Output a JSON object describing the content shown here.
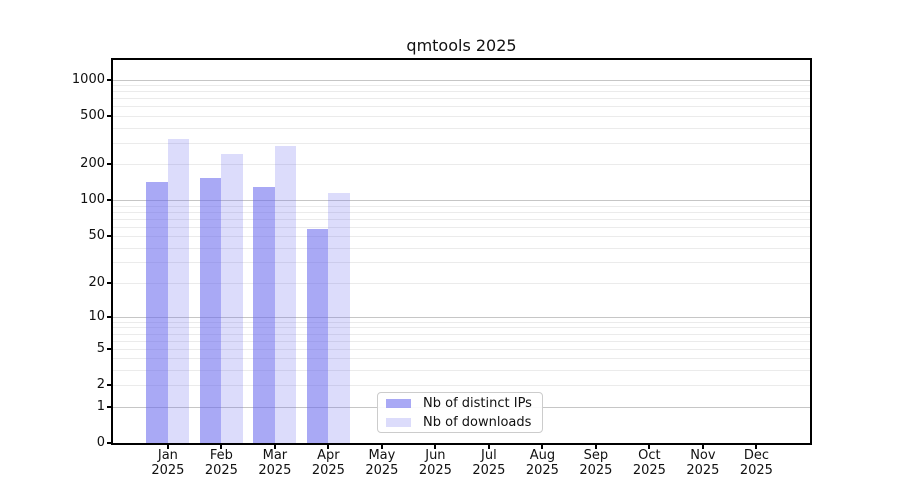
{
  "chart_data": {
    "type": "bar",
    "title": "qmtools 2025",
    "categories": [
      "Jan",
      "Feb",
      "Mar",
      "Apr",
      "May",
      "Jun",
      "Jul",
      "Aug",
      "Sep",
      "Oct",
      "Nov",
      "Dec"
    ],
    "x_tick_year": "2025",
    "series": [
      {
        "name": "Nb of distinct IPs",
        "values": [
          142,
          152,
          130,
          57,
          0,
          0,
          0,
          0,
          0,
          0,
          0,
          0
        ],
        "base_color": "102,102,238",
        "alpha": 0.56,
        "displayed_color": "#abaaf7"
      },
      {
        "name": "Nb of downloads",
        "values": [
          322,
          240,
          282,
          116,
          0,
          0,
          0,
          0,
          0,
          0,
          0,
          0
        ],
        "base_color": "102,102,238",
        "alpha": 0.23,
        "displayed_color": "#dcdbfa"
      }
    ],
    "yscale": "log1p",
    "ylim": [
      0,
      1450
    ],
    "ytick_values": [
      0,
      1,
      2,
      5,
      10,
      20,
      50,
      100,
      200,
      500,
      1000
    ],
    "ytick_labels": [
      "0",
      "1",
      "2",
      "5",
      "10",
      "20",
      "50",
      "100",
      "200",
      "500",
      "1000"
    ],
    "xlabel": "",
    "ylabel": "",
    "grid": {
      "major_color": "#c6c6c6",
      "minor_color": "#ebebeb",
      "minor_lines": true
    },
    "legend": {
      "position": "lower-center-inside"
    }
  }
}
